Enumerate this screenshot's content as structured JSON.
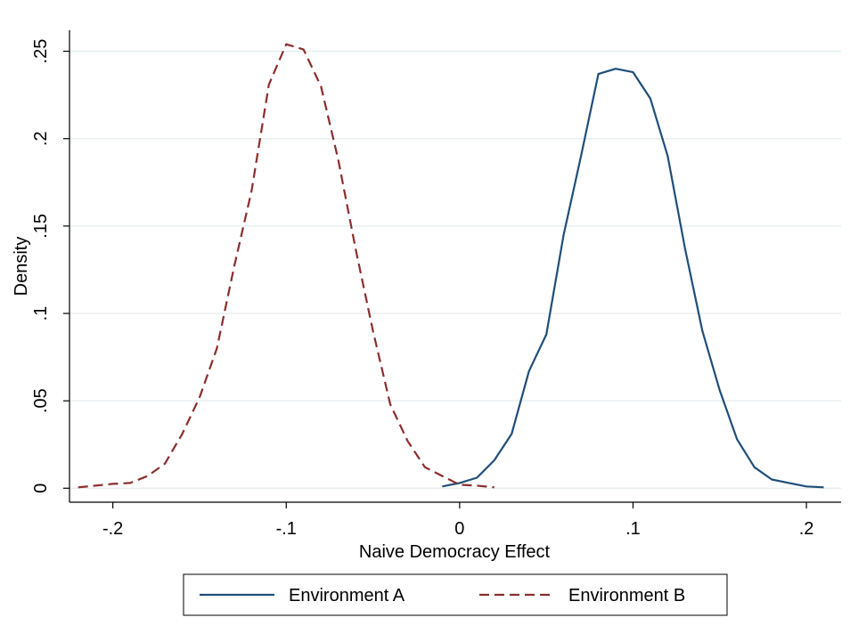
{
  "chart_data": {
    "type": "line",
    "xlabel": "Naive Democracy Effect",
    "ylabel": "Density",
    "xlim": [
      -0.225,
      0.22
    ],
    "ylim": [
      -0.008,
      0.262
    ],
    "xticks": [
      -0.2,
      -0.1,
      0,
      0.1,
      0.2
    ],
    "xtick_labels": [
      "-.2",
      "-.1",
      "0",
      ".1",
      ".2"
    ],
    "yticks": [
      0,
      0.05,
      0.1,
      0.15,
      0.2,
      0.25
    ],
    "ytick_labels": [
      "0",
      ".05",
      ".1",
      ".15",
      ".2",
      ".25"
    ],
    "grid": true,
    "legend_position": "bottom",
    "series": [
      {
        "name": "Environment A",
        "color": "#1f4e79",
        "dash": "solid",
        "x": [
          -0.01,
          0.0,
          0.01,
          0.02,
          0.03,
          0.04,
          0.05,
          0.06,
          0.07,
          0.08,
          0.09,
          0.1,
          0.11,
          0.12,
          0.13,
          0.14,
          0.15,
          0.16,
          0.17,
          0.18,
          0.19,
          0.2,
          0.21
        ],
        "y": [
          0.001,
          0.003,
          0.006,
          0.016,
          0.031,
          0.067,
          0.088,
          0.145,
          0.19,
          0.237,
          0.24,
          0.238,
          0.223,
          0.19,
          0.137,
          0.09,
          0.056,
          0.028,
          0.012,
          0.005,
          0.003,
          0.001,
          0.0005
        ]
      },
      {
        "name": "Environment B",
        "color": "#8b2d2d",
        "dash": "dashed",
        "x": [
          -0.22,
          -0.21,
          -0.2,
          -0.19,
          -0.18,
          -0.17,
          -0.16,
          -0.15,
          -0.14,
          -0.13,
          -0.12,
          -0.11,
          -0.1,
          -0.09,
          -0.08,
          -0.07,
          -0.06,
          -0.05,
          -0.04,
          -0.03,
          -0.02,
          -0.01,
          0.0,
          0.01,
          0.02
        ],
        "y": [
          0.0005,
          0.0015,
          0.0025,
          0.003,
          0.007,
          0.014,
          0.031,
          0.052,
          0.08,
          0.127,
          0.17,
          0.231,
          0.254,
          0.251,
          0.23,
          0.188,
          0.137,
          0.09,
          0.048,
          0.027,
          0.012,
          0.007,
          0.002,
          0.0015,
          0.0005
        ]
      }
    ]
  }
}
